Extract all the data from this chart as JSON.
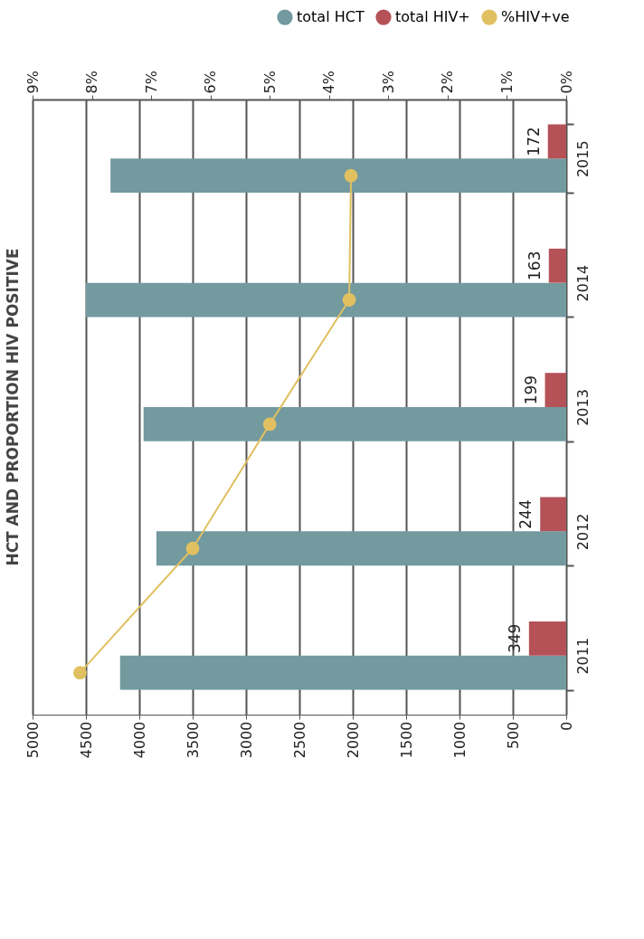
{
  "chart_data": {
    "type": "bar",
    "orientation": "horizontal",
    "title": "HCT AND PROPORTION HIV POSITIVE",
    "categories": [
      "2015",
      "2014",
      "2013",
      "2012",
      "2011"
    ],
    "series": [
      {
        "name": "total HCT",
        "color": "#729a9f",
        "values": [
          4270,
          4500,
          3960,
          3840,
          4180
        ]
      },
      {
        "name": "total HIV+",
        "color": "#b45258",
        "values": [
          172,
          163,
          199,
          244,
          349
        ],
        "value_labels": [
          "172",
          "163",
          "199",
          "244",
          "349"
        ]
      },
      {
        "name": "%HIV+ve",
        "type": "line",
        "axis": "x2",
        "color": "#e0c060",
        "marker": "circle",
        "values": [
          3.63,
          3.66,
          5.0,
          6.3,
          8.2
        ]
      }
    ],
    "xlim": [
      5000,
      0
    ],
    "xticks": [
      5000,
      4500,
      4000,
      3500,
      3000,
      2500,
      2000,
      1500,
      1000,
      500,
      0
    ],
    "x2lim": [
      9,
      0
    ],
    "x2ticks": [
      {
        "value": 9,
        "label": "9%"
      },
      {
        "value": 8,
        "label": "8%"
      },
      {
        "value": 7,
        "label": "7%"
      },
      {
        "value": 6,
        "label": "6%"
      },
      {
        "value": 5,
        "label": "5%"
      },
      {
        "value": 4,
        "label": "4%"
      },
      {
        "value": 3,
        "label": "3%"
      },
      {
        "value": 2,
        "label": "2%"
      },
      {
        "value": 1,
        "label": "1%"
      },
      {
        "value": 0,
        "label": "0%"
      }
    ],
    "grid": "x",
    "legend": "top right"
  }
}
